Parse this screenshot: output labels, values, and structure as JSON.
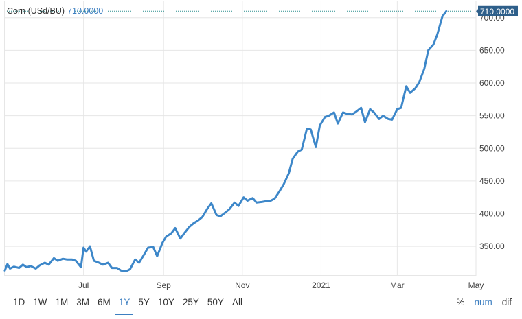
{
  "header": {
    "instrument": "Corn (USd/BU)",
    "last_price": "710.0000"
  },
  "price_badge": "710.0000",
  "ranges": [
    "1D",
    "1W",
    "1M",
    "3M",
    "6M",
    "1Y",
    "5Y",
    "10Y",
    "25Y",
    "50Y",
    "All"
  ],
  "active_range": "1Y",
  "modes": [
    "%",
    "num",
    "dif"
  ],
  "active_mode": "num",
  "colors": {
    "line": "#3d87c9",
    "accent": "#3d7fc1",
    "grid": "#e6e6e6",
    "badge_bg": "#2e5f8a",
    "last_line": "#2b8f8f"
  },
  "chart_data": {
    "type": "line",
    "title": "Corn (USd/BU)",
    "xlabel": "",
    "ylabel": "",
    "ylim": [
      305,
      725
    ],
    "grid": true,
    "yticks": [
      350,
      400,
      450,
      500,
      550,
      600,
      650,
      700
    ],
    "ytick_labels": [
      "350.00",
      "400.00",
      "450.00",
      "500.00",
      "550.00",
      "600.00",
      "650.00",
      "700.00"
    ],
    "xticks": [
      "2020-07-01",
      "2020-09-01",
      "2020-11-01",
      "2021-01-01",
      "2021-03-01",
      "2021-05-01"
    ],
    "xtick_labels": [
      "Jul",
      "Sep",
      "Nov",
      "2021",
      "Mar",
      "May"
    ],
    "xlim": [
      "2020-05-01",
      "2021-05-01"
    ],
    "series": [
      {
        "x": [
          "2020-05-01",
          "2020-05-03",
          "2020-05-05",
          "2020-05-08",
          "2020-05-12",
          "2020-05-15",
          "2020-05-18",
          "2020-05-21",
          "2020-05-25",
          "2020-05-28",
          "2020-06-01",
          "2020-06-04",
          "2020-06-08",
          "2020-06-11",
          "2020-06-15",
          "2020-06-18",
          "2020-06-22",
          "2020-06-25",
          "2020-06-29",
          "2020-07-01",
          "2020-07-03",
          "2020-07-06",
          "2020-07-09",
          "2020-07-13",
          "2020-07-16",
          "2020-07-20",
          "2020-07-23",
          "2020-07-27",
          "2020-07-30",
          "2020-08-03",
          "2020-08-06",
          "2020-08-10",
          "2020-08-13",
          "2020-08-17",
          "2020-08-20",
          "2020-08-24",
          "2020-08-27",
          "2020-08-31",
          "2020-09-03",
          "2020-09-07",
          "2020-09-10",
          "2020-09-14",
          "2020-09-17",
          "2020-09-21",
          "2020-09-24",
          "2020-09-28",
          "2020-10-01",
          "2020-10-05",
          "2020-10-08",
          "2020-10-12",
          "2020-10-15",
          "2020-10-19",
          "2020-10-22",
          "2020-10-26",
          "2020-10-29",
          "2020-11-02",
          "2020-11-05",
          "2020-11-09",
          "2020-11-12",
          "2020-11-16",
          "2020-11-19",
          "2020-11-23",
          "2020-11-26",
          "2020-11-30",
          "2020-12-03",
          "2020-12-07",
          "2020-12-10",
          "2020-12-14",
          "2020-12-17",
          "2020-12-21",
          "2020-12-24",
          "2020-12-28",
          "2020-12-31",
          "2021-01-04",
          "2021-01-07",
          "2021-01-11",
          "2021-01-14",
          "2021-01-18",
          "2021-01-21",
          "2021-01-25",
          "2021-01-28",
          "2021-02-01",
          "2021-02-04",
          "2021-02-08",
          "2021-02-11",
          "2021-02-15",
          "2021-02-18",
          "2021-02-22",
          "2021-02-25",
          "2021-03-01",
          "2021-03-04",
          "2021-03-08",
          "2021-03-11",
          "2021-03-15",
          "2021-03-18",
          "2021-03-22",
          "2021-03-25",
          "2021-03-29",
          "2021-04-01",
          "2021-04-05",
          "2021-04-08",
          "2021-04-12",
          "2021-04-15",
          "2021-04-19",
          "2021-04-22",
          "2021-04-26",
          "2021-04-29"
        ],
        "values": [
          313,
          323,
          316,
          319,
          317,
          322,
          318,
          320,
          316,
          321,
          325,
          322,
          332,
          328,
          331,
          330,
          330,
          328,
          318,
          348,
          342,
          350,
          328,
          325,
          322,
          325,
          317,
          317,
          313,
          312,
          315,
          330,
          325,
          338,
          348,
          349,
          335,
          355,
          365,
          370,
          378,
          362,
          370,
          380,
          385,
          390,
          395,
          408,
          416,
          398,
          396,
          402,
          407,
          417,
          412,
          425,
          420,
          424,
          417,
          418,
          419,
          420,
          423,
          435,
          445,
          462,
          484,
          495,
          498,
          530,
          529,
          502,
          535,
          548,
          550,
          555,
          538,
          555,
          553,
          552,
          556,
          562,
          540,
          560,
          555,
          545,
          550,
          545,
          544,
          560,
          562,
          595,
          585,
          592,
          601,
          622,
          650,
          659,
          674,
          702,
          710,
          710,
          710,
          710,
          710,
          710,
          710
        ]
      }
    ],
    "last_value": 710.0
  }
}
